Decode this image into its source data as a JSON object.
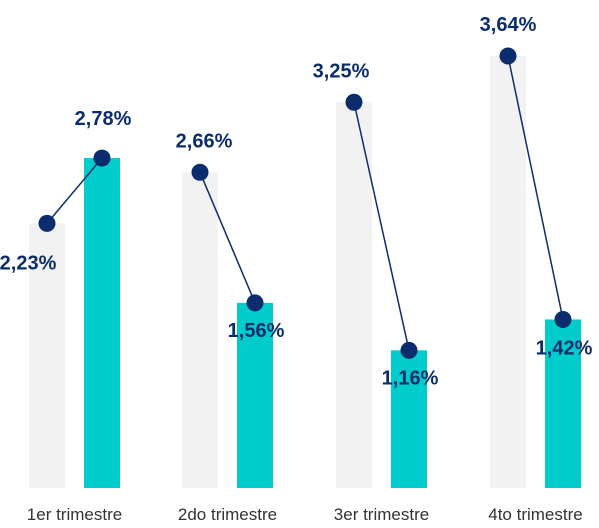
{
  "chart_data": {
    "type": "bar",
    "categories": [
      "1er trimestre",
      "2do trimestre",
      "3er trimestre",
      "4to trimestre"
    ],
    "series": [
      {
        "values": [
          2.23,
          2.66,
          3.25,
          3.64
        ],
        "labels": [
          "2,23%",
          "2,66%",
          "3,25%",
          "3,64%"
        ]
      },
      {
        "values": [
          2.78,
          1.56,
          1.16,
          1.42
        ],
        "labels": [
          "2,78%",
          "1,56%",
          "1,16%",
          "1,42%"
        ]
      }
    ],
    "ylim": [
      0,
      3.64
    ],
    "grid": false,
    "colors": {
      "bar_a": "#f2f2f2",
      "bar_b": "#00cccc",
      "marker": "#0b2d6e",
      "label": "#0b2d6e",
      "axis_text": "#333333"
    }
  }
}
